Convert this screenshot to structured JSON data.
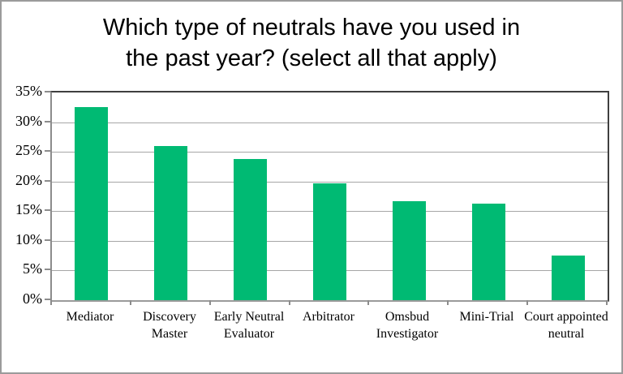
{
  "header": {
    "title_line1": "Which type of neutrals have you used in",
    "title_line2": "the past year? (select all that apply)"
  },
  "chart_data": {
    "type": "bar",
    "title": "Which type of neutrals have you used in the past year? (select all that apply)",
    "categories": [
      "Mediator",
      "Discovery Master",
      "Early Neutral Evaluator",
      "Arbitrator",
      "Omsbud Investigator",
      "Mini-Trial",
      "Court appointed neutral"
    ],
    "values": [
      32.5,
      26,
      23.8,
      19.7,
      16.7,
      16.3,
      7.5
    ],
    "unit": "%",
    "xlabel": "",
    "ylabel": "",
    "ylim": [
      0,
      35
    ],
    "ytick_step": 5,
    "ytick_labels": [
      "0%",
      "5%",
      "10%",
      "15%",
      "20%",
      "25%",
      "30%",
      "35%"
    ],
    "grid": true,
    "legend": false,
    "bar_color": "#00ba73",
    "gridline_color": "#a6a6a6",
    "axis_color": "#8c8c8c",
    "plot_border_color": "#3f3f3f",
    "text_color": "#000000"
  }
}
